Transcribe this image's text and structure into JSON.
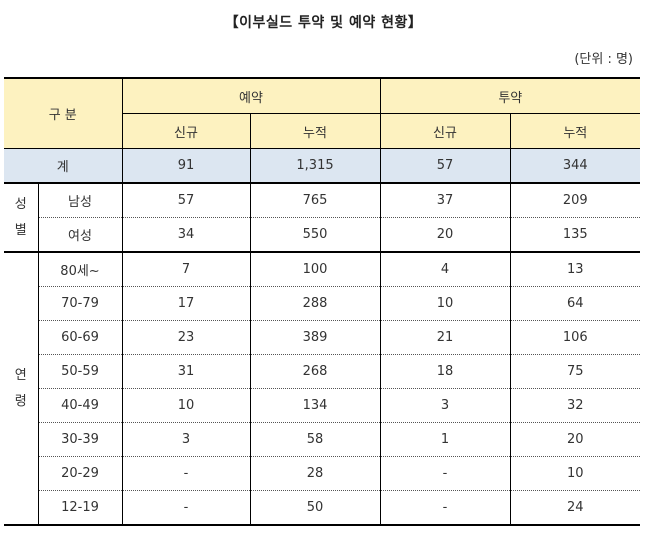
{
  "title": "【이부실드 투약 및 예약 현황】",
  "unit": "(단위 : 명)",
  "header": {
    "category": "구 분",
    "reservation": "예약",
    "administration": "투약",
    "sub": [
      "신규",
      "누적",
      "신규",
      "누적"
    ]
  },
  "total": {
    "label": "계",
    "values": [
      "91",
      "1,315",
      "57",
      "344"
    ]
  },
  "sex": {
    "group_chars": [
      "성",
      "별"
    ],
    "rows": [
      {
        "label": "남성",
        "values": [
          "57",
          "765",
          "37",
          "209"
        ]
      },
      {
        "label": "여성",
        "values": [
          "34",
          "550",
          "20",
          "135"
        ]
      }
    ]
  },
  "age": {
    "group_chars": [
      "연",
      "령"
    ],
    "rows": [
      {
        "label": "80세~",
        "values": [
          "7",
          "100",
          "4",
          "13"
        ]
      },
      {
        "label": "70-79",
        "values": [
          "17",
          "288",
          "10",
          "64"
        ]
      },
      {
        "label": "60-69",
        "values": [
          "23",
          "389",
          "21",
          "106"
        ]
      },
      {
        "label": "50-59",
        "values": [
          "31",
          "268",
          "18",
          "75"
        ]
      },
      {
        "label": "40-49",
        "values": [
          "10",
          "134",
          "3",
          "32"
        ]
      },
      {
        "label": "30-39",
        "values": [
          "3",
          "58",
          "1",
          "20"
        ]
      },
      {
        "label": "20-29",
        "values": [
          "-",
          "28",
          "-",
          "10"
        ]
      },
      {
        "label": "12-19",
        "values": [
          "-",
          "50",
          "-",
          "24"
        ]
      }
    ]
  }
}
